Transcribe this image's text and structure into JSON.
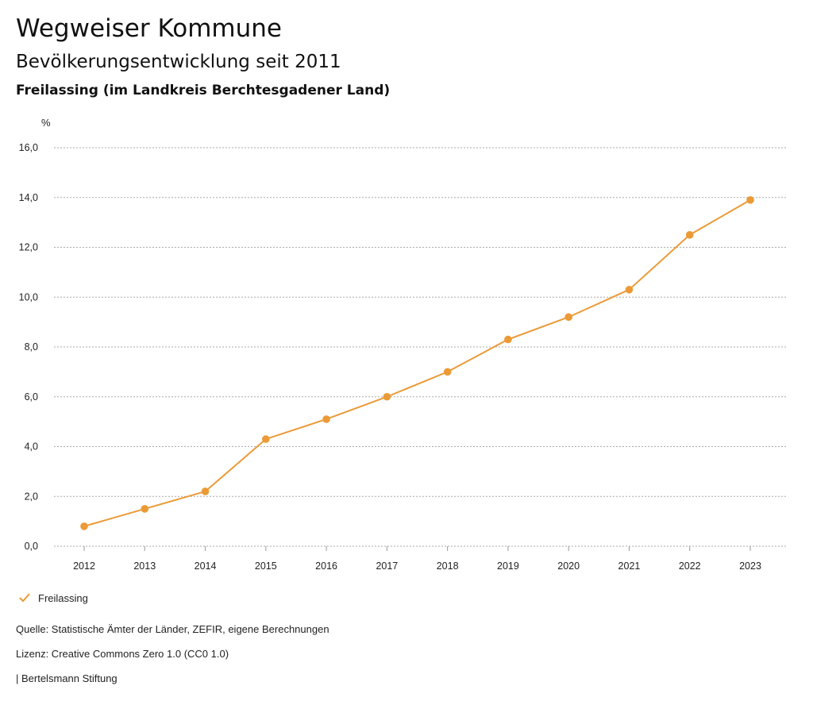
{
  "header": {
    "title": "Wegweiser Kommune",
    "subtitle": "Bevölkerungsentwicklung seit 2011",
    "region": "Freilassing (im Landkreis Berchtesgadener Land)"
  },
  "chart_data": {
    "type": "line",
    "ylabel": "%",
    "xlabel": "",
    "categories": [
      "2012",
      "2013",
      "2014",
      "2015",
      "2016",
      "2017",
      "2018",
      "2019",
      "2020",
      "2021",
      "2022",
      "2023"
    ],
    "series": [
      {
        "name": "Freilassing",
        "values": [
          0.8,
          1.5,
          2.2,
          4.3,
          5.1,
          6.0,
          7.0,
          8.3,
          9.2,
          10.3,
          12.5,
          13.9
        ]
      }
    ],
    "ylim": [
      0,
      16
    ],
    "yticks": [
      0,
      2,
      4,
      6,
      8,
      10,
      12,
      14,
      16
    ],
    "ytick_labels": [
      "0,0",
      "2,0",
      "4,0",
      "6,0",
      "8,0",
      "10,0",
      "12,0",
      "14,0",
      "16,0"
    ],
    "grid": true,
    "legend_position": "bottom-left",
    "colors": {
      "series": "#eb9a36",
      "grid": "#aaaaaa",
      "axis": "#999999"
    }
  },
  "footer": {
    "source": "Quelle: Statistische Ämter der Länder, ZEFIR, eigene Berechnungen",
    "license": "Lizenz: Creative Commons Zero 1.0 (CC0 1.0)",
    "org": "| Bertelsmann Stiftung"
  }
}
